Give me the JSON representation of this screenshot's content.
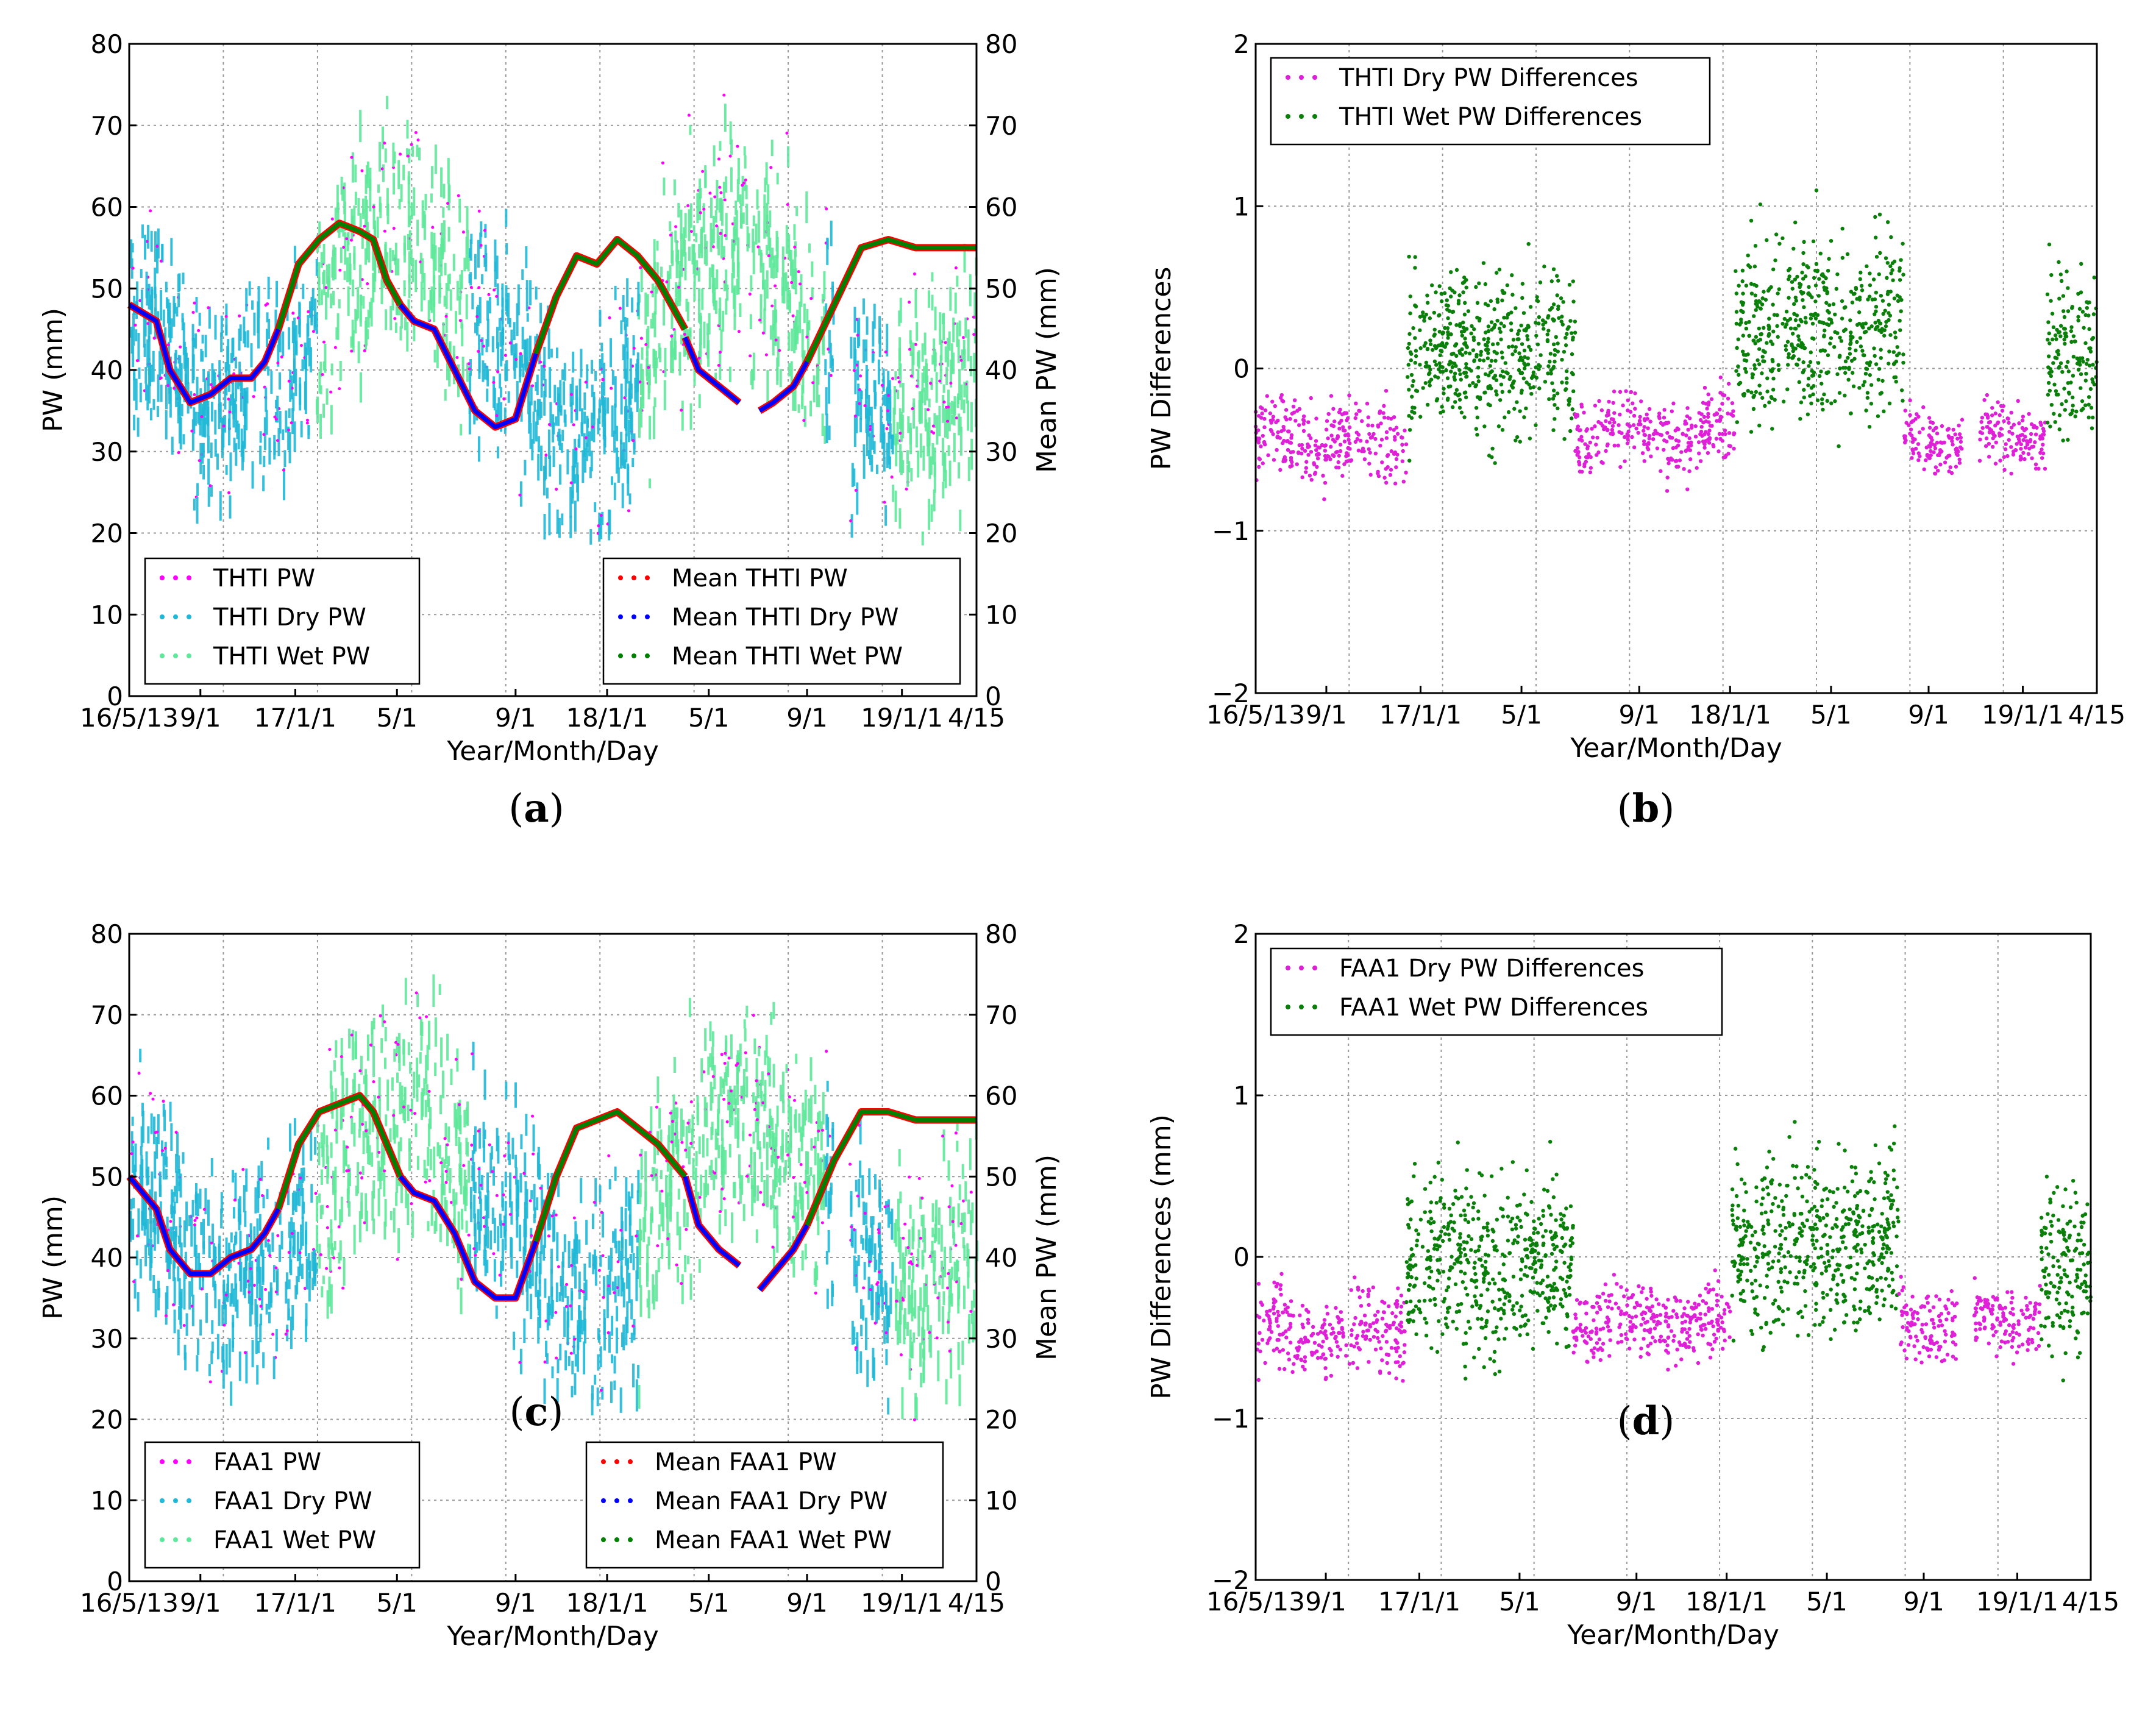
{
  "chart_data": [
    {
      "panel": "a",
      "type": "line",
      "subtitle": "(a)",
      "xlabel": "Year/Month/Day",
      "ylabel": "PW (mm)",
      "ylabel_right": "Mean PW (mm)",
      "ylim": [
        0,
        80
      ],
      "yticks": [
        "0",
        "10",
        "20",
        "30",
        "40",
        "50",
        "60",
        "70",
        "80"
      ],
      "xticks": [
        "16/5/13",
        "9/1",
        "17/1/1",
        "5/1",
        "9/1",
        "18/1/1",
        "5/1",
        "9/1",
        "19/1/1",
        "4/15"
      ],
      "legend_left": [
        "THTI PW",
        "THTI Dry PW",
        "THTI Wet PW"
      ],
      "legend_right": [
        "Mean THTI PW",
        "Mean THTI Dry PW",
        "Mean THTI Wet PW"
      ],
      "mean_series": [
        {
          "name": "Mean THTI PW (dry periods)",
          "x": [
            0.0,
            0.04,
            0.06,
            0.09,
            0.12,
            0.15,
            0.18,
            0.2,
            0.22
          ],
          "y": [
            48,
            46,
            40,
            36,
            37,
            39,
            39,
            41,
            45
          ]
        },
        {
          "name": "Mean THTI Wet PW",
          "x": [
            0.22,
            0.25,
            0.28,
            0.31,
            0.34,
            0.36,
            0.38,
            0.4
          ],
          "y": [
            45,
            53,
            56,
            58,
            57,
            56,
            51,
            48
          ]
        },
        {
          "name": "Mean THTI PW",
          "x": [
            0.4,
            0.42,
            0.45,
            0.48,
            0.51,
            0.54,
            0.57,
            0.6
          ],
          "y": [
            48,
            46,
            45,
            40,
            35,
            33,
            34,
            42
          ]
        },
        {
          "name": "Mean THTI Wet PW",
          "x": [
            0.6,
            0.63,
            0.66,
            0.69,
            0.72,
            0.75,
            0.78,
            0.82
          ],
          "y": [
            42,
            49,
            54,
            53,
            56,
            54,
            51,
            45
          ]
        },
        {
          "name": "Mean THTI PW",
          "x": [
            0.82,
            0.84,
            0.87,
            0.9
          ],
          "y": [
            44,
            40,
            38,
            36
          ]
        },
        {
          "name": "Mean THTI PW",
          "x": [
            0.93,
            0.95,
            0.98,
            1.0
          ],
          "y": [
            35,
            36,
            38,
            41
          ]
        },
        {
          "name": "Mean THTI Wet PW",
          "x": [
            1.0,
            1.04,
            1.08,
            1.12,
            1.16,
            1.2,
            1.25
          ],
          "y": [
            41,
            48,
            55,
            56,
            55,
            55,
            55
          ]
        }
      ]
    },
    {
      "panel": "b",
      "type": "scatter",
      "subtitle": "(b)",
      "xlabel": "Year/Month/Day",
      "ylabel": "PW Differences",
      "ylim": [
        -2,
        2
      ],
      "yticks": [
        "−2",
        "−1",
        "0",
        "1",
        "2"
      ],
      "xticks": [
        "16/5/13",
        "9/1",
        "17/1/1",
        "5/1",
        "9/1",
        "18/1/1",
        "5/1",
        "9/1",
        "19/1/1",
        "4/15"
      ],
      "legend": [
        "THTI Dry PW Differences",
        "THTI Wet PW Differences"
      ],
      "bands": [
        {
          "series": "dry",
          "x0": 0.0,
          "x1": 0.18,
          "center": -0.45,
          "spread": 0.18
        },
        {
          "series": "wet",
          "x0": 0.18,
          "x1": 0.38,
          "center": 0.1,
          "spread": 0.35
        },
        {
          "series": "dry",
          "x0": 0.38,
          "x1": 0.57,
          "center": -0.4,
          "spread": 0.16
        },
        {
          "series": "wet",
          "x0": 0.57,
          "x1": 0.77,
          "center": 0.25,
          "spread": 0.4
        },
        {
          "series": "dry",
          "x0": 0.77,
          "x1": 0.84,
          "center": -0.42,
          "spread": 0.14
        },
        {
          "series": "dry",
          "x0": 0.86,
          "x1": 0.94,
          "center": -0.4,
          "spread": 0.14
        },
        {
          "series": "wet",
          "x0": 0.94,
          "x1": 1.0,
          "center": 0.1,
          "spread": 0.35
        }
      ]
    },
    {
      "panel": "c",
      "type": "line",
      "subtitle": "(c)",
      "xlabel": "Year/Month/Day",
      "ylabel": "PW (mm)",
      "ylabel_right": "Mean PW (mm)",
      "ylim": [
        0,
        80
      ],
      "yticks": [
        "0",
        "10",
        "20",
        "30",
        "40",
        "50",
        "60",
        "70",
        "80"
      ],
      "xticks": [
        "16/5/13",
        "9/1",
        "17/1/1",
        "5/1",
        "9/1",
        "18/1/1",
        "5/1",
        "9/1",
        "19/1/1",
        "4/15"
      ],
      "legend_left": [
        "FAA1 PW",
        "FAA1 Dry PW",
        "FAA1 Wet PW"
      ],
      "legend_right": [
        "Mean FAA1 PW",
        "Mean FAA1 Dry PW",
        "Mean FAA1 Wet PW"
      ],
      "mean_series": [
        {
          "name": "Mean FAA1 PW (dry periods)",
          "x": [
            0.0,
            0.04,
            0.06,
            0.09,
            0.12,
            0.15,
            0.18,
            0.2,
            0.22
          ],
          "y": [
            50,
            46,
            41,
            38,
            38,
            40,
            41,
            43,
            46
          ]
        },
        {
          "name": "Mean FAA1 Wet PW",
          "x": [
            0.22,
            0.25,
            0.28,
            0.31,
            0.34,
            0.36,
            0.38,
            0.4
          ],
          "y": [
            46,
            54,
            58,
            59,
            60,
            58,
            54,
            50
          ]
        },
        {
          "name": "Mean FAA1 PW",
          "x": [
            0.4,
            0.42,
            0.45,
            0.48,
            0.51,
            0.54,
            0.57,
            0.6
          ],
          "y": [
            50,
            48,
            47,
            43,
            37,
            35,
            35,
            42
          ]
        },
        {
          "name": "Mean FAA1 Wet PW",
          "x": [
            0.6,
            0.63,
            0.66,
            0.69,
            0.72,
            0.75,
            0.78,
            0.82
          ],
          "y": [
            42,
            50,
            56,
            57,
            58,
            56,
            54,
            50
          ]
        },
        {
          "name": "Mean FAA1 PW",
          "x": [
            0.82,
            0.84,
            0.87,
            0.9
          ],
          "y": [
            50,
            44,
            41,
            39
          ]
        },
        {
          "name": "Mean FAA1 PW",
          "x": [
            0.93,
            0.95,
            0.98,
            1.0
          ],
          "y": [
            36,
            38,
            41,
            44
          ]
        },
        {
          "name": "Mean FAA1 Wet PW",
          "x": [
            1.0,
            1.04,
            1.08,
            1.12,
            1.16,
            1.2,
            1.25
          ],
          "y": [
            44,
            52,
            58,
            58,
            57,
            57,
            57
          ]
        }
      ]
    },
    {
      "panel": "d",
      "type": "scatter",
      "subtitle": "(d)",
      "xlabel": "Year/Month/Day",
      "ylabel": "PW Differences (mm)",
      "ylim": [
        -2,
        2
      ],
      "yticks": [
        "−2",
        "−1",
        "0",
        "1",
        "2"
      ],
      "xticks": [
        "16/5/13",
        "9/1",
        "17/1/1",
        "5/1",
        "9/1",
        "18/1/1",
        "5/1",
        "9/1",
        "19/1/1",
        "4/15"
      ],
      "legend": [
        "FAA1 Dry PW Differences",
        "FAA1 Wet PW Differences"
      ],
      "bands": [
        {
          "series": "dry",
          "x0": 0.0,
          "x1": 0.18,
          "center": -0.45,
          "spread": 0.18
        },
        {
          "series": "wet",
          "x0": 0.18,
          "x1": 0.38,
          "center": -0.05,
          "spread": 0.38
        },
        {
          "series": "dry",
          "x0": 0.38,
          "x1": 0.57,
          "center": -0.4,
          "spread": 0.16
        },
        {
          "series": "wet",
          "x0": 0.57,
          "x1": 0.77,
          "center": 0.1,
          "spread": 0.4
        },
        {
          "series": "dry",
          "x0": 0.77,
          "x1": 0.84,
          "center": -0.42,
          "spread": 0.14
        },
        {
          "series": "dry",
          "x0": 0.86,
          "x1": 0.94,
          "center": -0.4,
          "spread": 0.14
        },
        {
          "series": "wet",
          "x0": 0.94,
          "x1": 1.0,
          "center": -0.1,
          "spread": 0.38
        }
      ]
    }
  ],
  "colors": {
    "pw": "#ff00ff",
    "dry": "#1fb8d6",
    "wet": "#5ee89a",
    "mean_pw": "#ff0000",
    "mean_dry": "#0000ff",
    "mean_wet": "#008000",
    "diff_dry": "#e020d8",
    "diff_wet": "#0a800a",
    "grid": "#999999"
  }
}
